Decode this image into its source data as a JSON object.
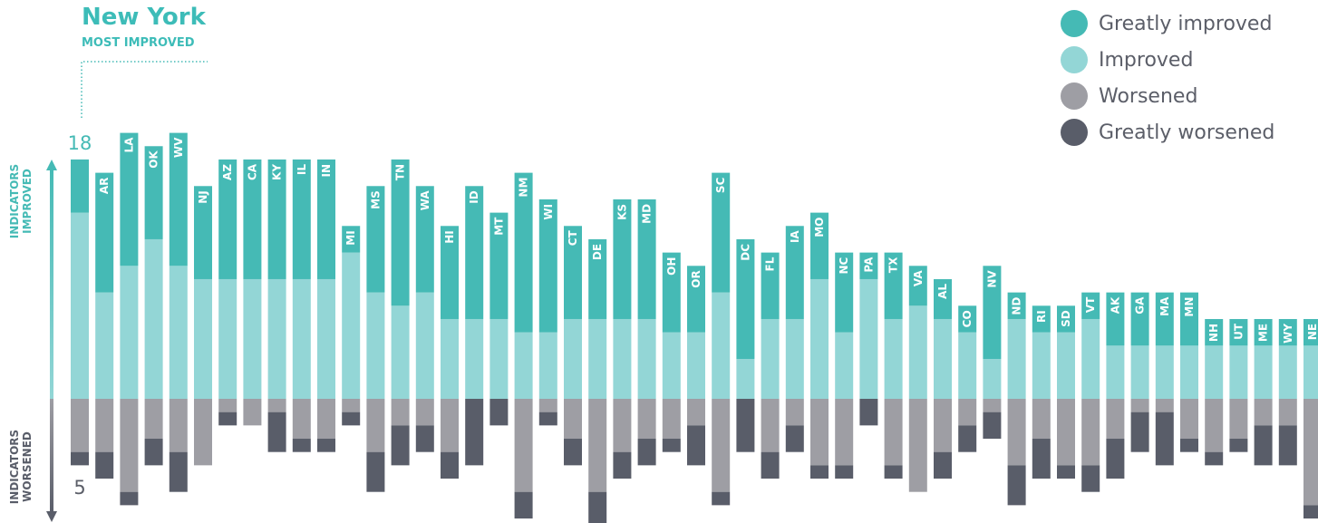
{
  "highlight": {
    "title": "New York",
    "subtitle": "MOST IMPROVED"
  },
  "legend": [
    {
      "label": "Greatly improved",
      "color": "#45bab5"
    },
    {
      "label": "Improved",
      "color": "#93d6d6"
    },
    {
      "label": "Worsened",
      "color": "#9e9ea4"
    },
    {
      "label": "Greatly worsened",
      "color": "#595d69"
    }
  ],
  "axis": {
    "improved_label": [
      "INDICATORS",
      "IMPROVED"
    ],
    "worsened_label": [
      "INDICATORS",
      "WORSENED"
    ],
    "improved_colors": [
      "#45bab5",
      "#93d6d6"
    ],
    "worsened_colors": [
      "#9e9ea4",
      "#595d69"
    ],
    "top_tick": "18",
    "bottom_tick": "5"
  },
  "chart_data": {
    "type": "bar",
    "stacked": "diverging",
    "ylim_improved": [
      0,
      18
    ],
    "ylim_worsened": [
      0,
      9
    ],
    "colors": {
      "greatly_improved": "#45bab5",
      "improved": "#93d6d6",
      "worsened": "#9e9ea4",
      "greatly_worsened": "#595d69"
    },
    "categories": [
      "NY",
      "AR",
      "LA",
      "OK",
      "WV",
      "NJ",
      "AZ",
      "CA",
      "KY",
      "IL",
      "IN",
      "MI",
      "MS",
      "TN",
      "WA",
      "HI",
      "ID",
      "MT",
      "NM",
      "WI",
      "CT",
      "DE",
      "KS",
      "MD",
      "OH",
      "OR",
      "SC",
      "DC",
      "FL",
      "IA",
      "MO",
      "NC",
      "PA",
      "TX",
      "VA",
      "AL",
      "CO",
      "NV",
      "ND",
      "RI",
      "SD",
      "VT",
      "AK",
      "GA",
      "MA",
      "MN",
      "NH",
      "UT",
      "ME",
      "WY",
      "NE"
    ],
    "greatly_improved": [
      4,
      9,
      10,
      7,
      10,
      7,
      9,
      9,
      9,
      9,
      9,
      2,
      8,
      11,
      8,
      7,
      10,
      8,
      12,
      10,
      7,
      6,
      9,
      9,
      6,
      5,
      9,
      9,
      5,
      7,
      5,
      6,
      2,
      5,
      3,
      3,
      2,
      7,
      2,
      2,
      2,
      2,
      4,
      4,
      4,
      4,
      2,
      2,
      2,
      2,
      2
    ],
    "improved": [
      14,
      8,
      10,
      12,
      10,
      9,
      9,
      9,
      9,
      9,
      9,
      11,
      8,
      7,
      8,
      6,
      6,
      6,
      5,
      5,
      6,
      6,
      6,
      6,
      5,
      5,
      8,
      3,
      6,
      6,
      9,
      5,
      9,
      6,
      7,
      6,
      5,
      3,
      6,
      5,
      5,
      6,
      4,
      4,
      4,
      4,
      4,
      4,
      4,
      4,
      4
    ],
    "worsened": [
      4,
      4,
      7,
      3,
      4,
      5,
      1,
      2,
      1,
      3,
      3,
      1,
      4,
      2,
      2,
      4,
      0,
      0,
      7,
      1,
      3,
      7,
      4,
      3,
      3,
      2,
      7,
      0,
      4,
      2,
      5,
      5,
      0,
      5,
      7,
      4,
      2,
      1,
      5,
      3,
      5,
      5,
      3,
      1,
      1,
      3,
      4,
      3,
      2,
      2,
      8
    ],
    "greatly_worsened": [
      1,
      2,
      1,
      2,
      3,
      0,
      1,
      0,
      3,
      1,
      1,
      1,
      3,
      3,
      2,
      2,
      5,
      2,
      2,
      1,
      2,
      3,
      2,
      2,
      1,
      3,
      1,
      4,
      2,
      2,
      1,
      1,
      2,
      1,
      0,
      2,
      2,
      2,
      3,
      3,
      1,
      2,
      3,
      3,
      4,
      1,
      1,
      1,
      3,
      3,
      1
    ]
  }
}
